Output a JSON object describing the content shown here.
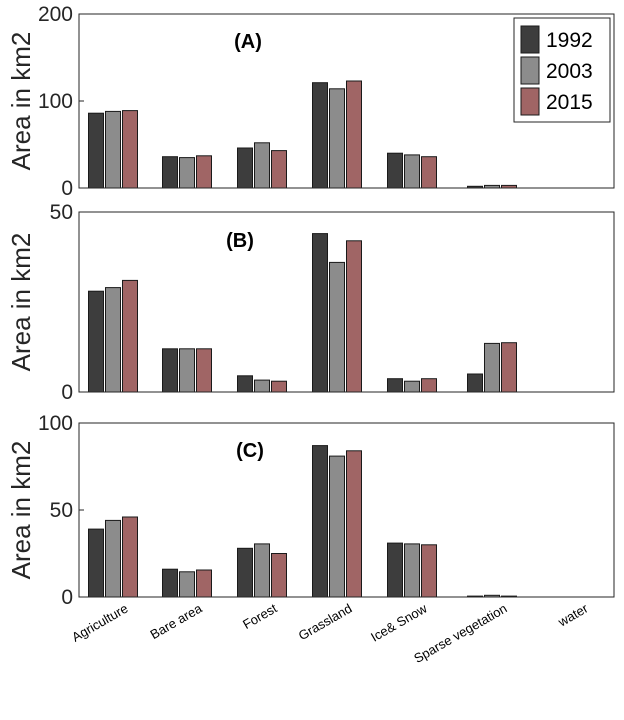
{
  "chart_data": [
    {
      "type": "bar",
      "title": "(A)",
      "ylabel": "Area in km2",
      "ylim": [
        0,
        200
      ],
      "yticks": [
        0,
        100,
        200
      ],
      "categories": [
        "Agriculture",
        "Bare area",
        "Forest",
        "Grassland",
        "Ice& Snow",
        "Sparse vegetation",
        "water"
      ],
      "legend": "top-right",
      "series": [
        {
          "name": "1992",
          "color": "#3d3d3d",
          "values": [
            86,
            36,
            46,
            121,
            40,
            2,
            0
          ]
        },
        {
          "name": "2003",
          "color": "#8c8c8c",
          "values": [
            88,
            35,
            52,
            114,
            38,
            3,
            0
          ]
        },
        {
          "name": "2015",
          "color": "#a06565",
          "values": [
            89,
            37,
            43,
            123,
            36,
            3,
            0
          ]
        }
      ]
    },
    {
      "type": "bar",
      "title": "(B)",
      "ylabel": "Area in km2",
      "ylim": [
        0,
        50
      ],
      "yticks": [
        0,
        50
      ],
      "categories": [
        "Agriculture",
        "Bare area",
        "Forest",
        "Grassland",
        "Ice& Snow",
        "Sparse vegetation",
        "water"
      ],
      "series": [
        {
          "name": "1992",
          "color": "#3d3d3d",
          "values": [
            28,
            12,
            4.5,
            44,
            3.7,
            5,
            0
          ]
        },
        {
          "name": "2003",
          "color": "#8c8c8c",
          "values": [
            29,
            12,
            3.3,
            36,
            3.0,
            13.5,
            0
          ]
        },
        {
          "name": "2015",
          "color": "#a06565",
          "values": [
            31,
            12,
            3.0,
            42,
            3.7,
            13.7,
            0
          ]
        }
      ]
    },
    {
      "type": "bar",
      "title": "(C)",
      "ylabel": "Area in km2",
      "ylim": [
        0,
        100
      ],
      "yticks": [
        0,
        50,
        100
      ],
      "categories": [
        "Agriculture",
        "Bare area",
        "Forest",
        "Grassland",
        "Ice& Snow",
        "Sparse vegetation",
        "water"
      ],
      "series": [
        {
          "name": "1992",
          "color": "#3d3d3d",
          "values": [
            39,
            16,
            28,
            87,
            31,
            0.5,
            0
          ]
        },
        {
          "name": "2003",
          "color": "#8c8c8c",
          "values": [
            44,
            14.5,
            30.5,
            81,
            30.5,
            1,
            0
          ]
        },
        {
          "name": "2015",
          "color": "#a06565",
          "values": [
            46,
            15.5,
            25,
            84,
            30,
            0.5,
            0
          ]
        }
      ]
    }
  ]
}
